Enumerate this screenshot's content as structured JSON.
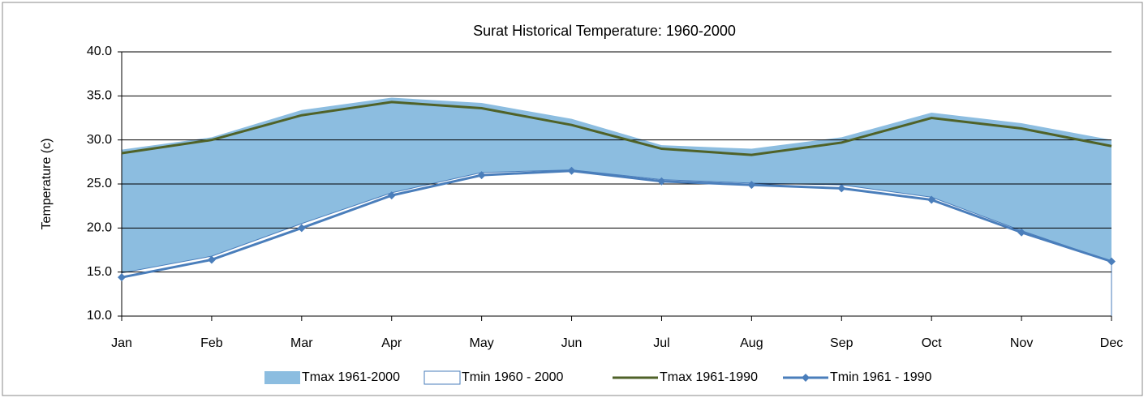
{
  "chart_data": {
    "type": "area",
    "title": "Surat Historical Temperature: 1960-2000",
    "y_label": "Temperature (c)",
    "categories": [
      "Jan",
      "Feb",
      "Mar",
      "Apr",
      "May",
      "Jun",
      "Jul",
      "Aug",
      "Sep",
      "Oct",
      "Nov",
      "Dec"
    ],
    "ylim": [
      10,
      40
    ],
    "yticks": [
      {
        "value": 10,
        "label": "10.0"
      },
      {
        "value": 15,
        "label": "15.0"
      },
      {
        "value": 20,
        "label": "20.0"
      },
      {
        "value": 25,
        "label": "25.0"
      },
      {
        "value": 30,
        "label": "30.0"
      },
      {
        "value": 35,
        "label": "35.0"
      },
      {
        "value": 40,
        "label": "40.0"
      }
    ],
    "grid": true,
    "legend": "bottom",
    "series": [
      {
        "name": "Tmax 1961-2000",
        "type": "area",
        "color": "#8cbde0",
        "values": [
          28.9,
          30.3,
          33.4,
          34.8,
          34.2,
          32.4,
          29.4,
          29.0,
          30.3,
          33.1,
          31.9,
          30.0
        ]
      },
      {
        "name": "Tmin 1960 - 2000",
        "type": "area",
        "color": "#ffffff",
        "values": [
          14.9,
          16.8,
          20.5,
          24.0,
          26.3,
          26.6,
          25.5,
          25.1,
          24.9,
          23.5,
          19.7,
          16.2
        ]
      },
      {
        "name": "Tmax 1961-1990",
        "type": "line",
        "color": "#4f6228",
        "values": [
          28.5,
          30.0,
          32.8,
          34.3,
          33.6,
          31.7,
          29.0,
          28.3,
          29.7,
          32.5,
          31.3,
          29.3
        ]
      },
      {
        "name": "Tmin 1961 - 1990",
        "type": "line-marker",
        "color": "#4a7ebb",
        "values": [
          14.4,
          16.4,
          20.0,
          23.7,
          26.0,
          26.5,
          25.3,
          24.9,
          24.5,
          23.2,
          19.5,
          16.2
        ]
      }
    ]
  }
}
